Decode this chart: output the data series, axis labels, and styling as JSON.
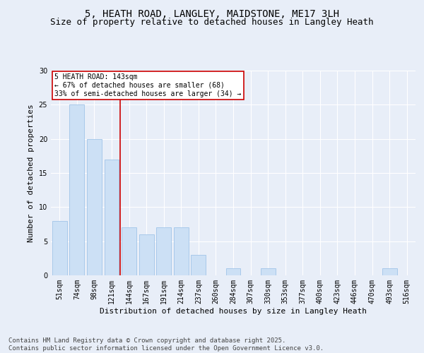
{
  "title": "5, HEATH ROAD, LANGLEY, MAIDSTONE, ME17 3LH",
  "subtitle": "Size of property relative to detached houses in Langley Heath",
  "xlabel": "Distribution of detached houses by size in Langley Heath",
  "ylabel": "Number of detached properties",
  "categories": [
    "51sqm",
    "74sqm",
    "98sqm",
    "121sqm",
    "144sqm",
    "167sqm",
    "191sqm",
    "214sqm",
    "237sqm",
    "260sqm",
    "284sqm",
    "307sqm",
    "330sqm",
    "353sqm",
    "377sqm",
    "400sqm",
    "423sqm",
    "446sqm",
    "470sqm",
    "493sqm",
    "516sqm"
  ],
  "values": [
    8,
    25,
    20,
    17,
    7,
    6,
    7,
    7,
    3,
    0,
    1,
    0,
    1,
    0,
    0,
    0,
    0,
    0,
    0,
    1,
    0
  ],
  "bar_color": "#cce0f5",
  "bar_edgecolor": "#a0c4e8",
  "vline_x": 3.5,
  "vline_color": "#cc0000",
  "annotation_text": "5 HEATH ROAD: 143sqm\n← 67% of detached houses are smaller (68)\n33% of semi-detached houses are larger (34) →",
  "annotation_box_color": "#ffffff",
  "annotation_box_edgecolor": "#cc0000",
  "ylim": [
    0,
    30
  ],
  "yticks": [
    0,
    5,
    10,
    15,
    20,
    25,
    30
  ],
  "footer_line1": "Contains HM Land Registry data © Crown copyright and database right 2025.",
  "footer_line2": "Contains public sector information licensed under the Open Government Licence v3.0.",
  "background_color": "#e8eef8",
  "plot_background_color": "#e8eef8",
  "grid_color": "#ffffff",
  "title_fontsize": 10,
  "subtitle_fontsize": 9,
  "ylabel_fontsize": 8,
  "xlabel_fontsize": 8,
  "tick_fontsize": 7,
  "footer_fontsize": 6.5,
  "annotation_fontsize": 7
}
